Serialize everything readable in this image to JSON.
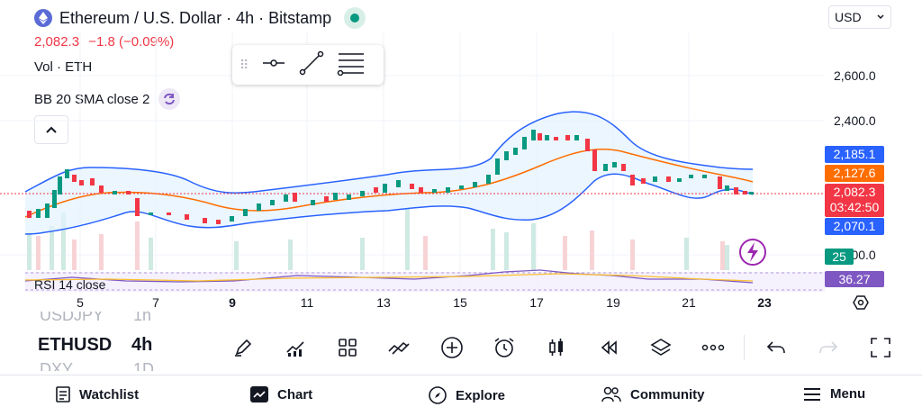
{
  "header": {
    "title": "Ethereum / U.S. Dollar · 4h · Bitstamp",
    "price": "2,082.3",
    "change": "−1.8 (−0.09%)",
    "currency": "USD"
  },
  "indicators": {
    "volume_label": "Vol · ETH",
    "bb_label": "BB 20 SMA close 2",
    "rsi_label": "RSI 14 close"
  },
  "price_axis": {
    "ticks": [
      "2,600.0",
      "2,400.0",
      "2,000.0"
    ]
  },
  "badges": {
    "bb_upper": "2,185.1",
    "bb_basis": "2,127.6",
    "last_price": "2,082.3",
    "countdown": "03:42:50",
    "bb_lower": "2,070.1",
    "volume": "25",
    "rsi": "36.27"
  },
  "time_axis": {
    "labels": [
      "5",
      "7",
      "9",
      "11",
      "13",
      "15",
      "17",
      "19",
      "21",
      "23"
    ]
  },
  "symbols": {
    "prev": "USDJPY",
    "prev_interval": "1h",
    "current": "ETHUSD",
    "current_interval": "4h",
    "next": "DXY",
    "next_interval": "1D"
  },
  "bottom_nav": {
    "watchlist": "Watchlist",
    "chart": "Chart",
    "explore": "Explore",
    "community": "Community",
    "menu": "Menu"
  },
  "colors": {
    "up": "#089981",
    "down": "#f23645",
    "bb_band": "#2962ff",
    "bb_basis": "#ff6d00",
    "rsi": "#7e57c2"
  },
  "chart_data": {
    "type": "candlestick",
    "x_labels": [
      "5",
      "7",
      "9",
      "11",
      "13",
      "15",
      "17",
      "19",
      "21",
      "23"
    ],
    "y_ticks": [
      2000,
      2400,
      2600
    ],
    "last_price": 2082.3,
    "bollinger": {
      "upper": 2185.1,
      "basis": 2127.6,
      "lower": 2070.1
    }
  }
}
